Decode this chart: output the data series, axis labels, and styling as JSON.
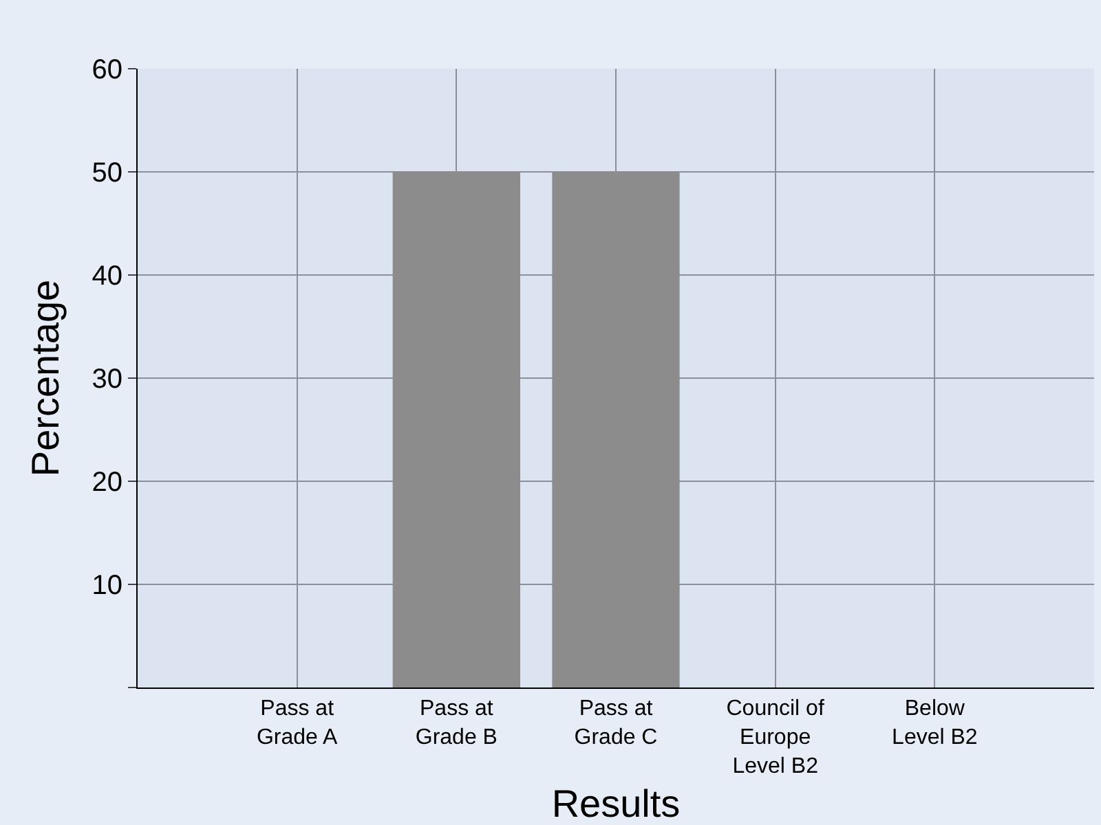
{
  "chart_data": {
    "type": "bar",
    "xlabel": "Results",
    "ylabel": "Percentage",
    "categories": [
      "Pass at Grade A",
      "Pass at Grade B",
      "Pass at Grade C",
      "Council of Europe Level B2",
      "Below Level B2"
    ],
    "values": [
      0,
      50,
      50,
      0,
      0
    ],
    "color": "#8c8c8c",
    "ylim": [
      0,
      60
    ],
    "yticks": [
      {
        "value": 0,
        "label": null
      },
      10,
      20,
      30,
      40,
      50,
      60
    ],
    "grid": true
  }
}
